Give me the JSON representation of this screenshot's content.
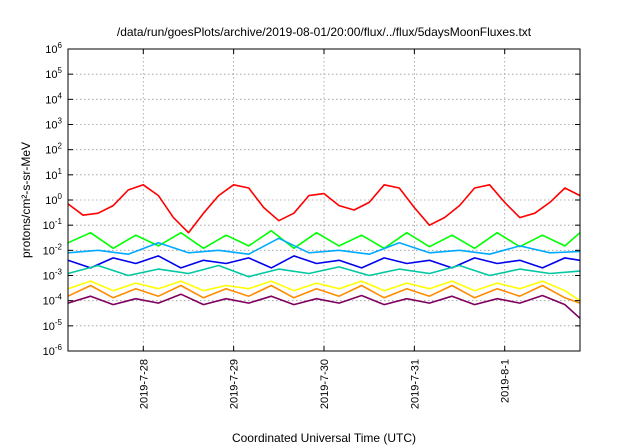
{
  "chart_data": {
    "type": "line",
    "title": "/data/run/goesPlots/archive/2019-08-01/20:00/flux/../flux/5daysMoonFluxes.txt",
    "xlabel": "Coordinated Universal Time (UTC)",
    "ylabel": "protons/cm²-s-sr-MeV",
    "yscale": "log",
    "ylim": [
      1e-06,
      1000000.0
    ],
    "xlim": [
      "2019-07-27 04:00",
      "2019-08-01 20:00"
    ],
    "grid": true,
    "y_ticks": [
      {
        "value": 1e-06,
        "base": "10",
        "exp": "-6"
      },
      {
        "value": 1e-05,
        "base": "10",
        "exp": "-5"
      },
      {
        "value": 0.0001,
        "base": "10",
        "exp": "-4"
      },
      {
        "value": 0.001,
        "base": "10",
        "exp": "-3"
      },
      {
        "value": 0.01,
        "base": "10",
        "exp": "-2"
      },
      {
        "value": 0.1,
        "base": "10",
        "exp": "-1"
      },
      {
        "value": 1.0,
        "base": "10",
        "exp": "0"
      },
      {
        "value": 10.0,
        "base": "10",
        "exp": "1"
      },
      {
        "value": 100.0,
        "base": "10",
        "exp": "2"
      },
      {
        "value": 1000.0,
        "base": "10",
        "exp": "3"
      },
      {
        "value": 10000.0,
        "base": "10",
        "exp": "4"
      },
      {
        "value": 100000.0,
        "base": "10",
        "exp": "5"
      },
      {
        "value": 1000000.0,
        "base": "10",
        "exp": "6"
      }
    ],
    "x_ticks": [
      {
        "value": "2019-07-28 00:00",
        "label": "2019-7-28"
      },
      {
        "value": "2019-07-29 00:00",
        "label": "2019-7-29"
      },
      {
        "value": "2019-07-30 00:00",
        "label": "2019-7-30"
      },
      {
        "value": "2019-07-31 00:00",
        "label": "2019-7-31"
      },
      {
        "value": "2019-08-01 00:00",
        "label": "2019-8-1"
      }
    ],
    "series": [
      {
        "color": "#ff0000",
        "x": [
          "2019-07-27 04:00",
          "2019-07-27 08:00",
          "2019-07-27 12:00",
          "2019-07-27 16:00",
          "2019-07-27 20:00",
          "2019-07-28 00:00",
          "2019-07-28 04:00",
          "2019-07-28 08:00",
          "2019-07-28 12:00",
          "2019-07-28 16:00",
          "2019-07-28 20:00",
          "2019-07-29 00:00",
          "2019-07-29 04:00",
          "2019-07-29 08:00",
          "2019-07-29 12:00",
          "2019-07-29 16:00",
          "2019-07-29 20:00",
          "2019-07-30 00:00",
          "2019-07-30 04:00",
          "2019-07-30 08:00",
          "2019-07-30 12:00",
          "2019-07-30 16:00",
          "2019-07-30 20:00",
          "2019-07-31 00:00",
          "2019-07-31 04:00",
          "2019-07-31 08:00",
          "2019-07-31 12:00",
          "2019-07-31 16:00",
          "2019-07-31 20:00",
          "2019-08-01 00:00",
          "2019-08-01 04:00",
          "2019-08-01 08:00",
          "2019-08-01 12:00",
          "2019-08-01 16:00",
          "2019-08-01 20:00"
        ],
        "values": [
          0.7,
          0.25,
          0.3,
          0.6,
          2.5,
          4,
          1.5,
          0.2,
          0.05,
          0.3,
          1.5,
          4,
          3,
          0.5,
          0.15,
          0.3,
          1.5,
          1.8,
          0.6,
          0.4,
          0.8,
          4,
          3,
          0.5,
          0.1,
          0.2,
          0.6,
          3,
          4,
          0.8,
          0.2,
          0.3,
          0.8,
          3,
          1.5
        ]
      },
      {
        "color": "#00ff00",
        "x": [
          "2019-07-27 04:00",
          "2019-07-27 10:00",
          "2019-07-27 16:00",
          "2019-07-27 22:00",
          "2019-07-28 04:00",
          "2019-07-28 10:00",
          "2019-07-28 16:00",
          "2019-07-28 22:00",
          "2019-07-29 04:00",
          "2019-07-29 10:00",
          "2019-07-29 16:00",
          "2019-07-29 22:00",
          "2019-07-30 04:00",
          "2019-07-30 10:00",
          "2019-07-30 16:00",
          "2019-07-30 22:00",
          "2019-07-31 04:00",
          "2019-07-31 10:00",
          "2019-07-31 16:00",
          "2019-07-31 22:00",
          "2019-08-01 04:00",
          "2019-08-01 10:00",
          "2019-08-01 16:00",
          "2019-08-01 20:00"
        ],
        "values": [
          0.02,
          0.05,
          0.012,
          0.04,
          0.015,
          0.05,
          0.012,
          0.04,
          0.015,
          0.06,
          0.012,
          0.05,
          0.015,
          0.04,
          0.012,
          0.05,
          0.014,
          0.04,
          0.012,
          0.05,
          0.014,
          0.04,
          0.015,
          0.05
        ]
      },
      {
        "color": "#00aaff",
        "x": [
          "2019-07-27 04:00",
          "2019-07-27 12:00",
          "2019-07-27 20:00",
          "2019-07-28 04:00",
          "2019-07-28 12:00",
          "2019-07-28 20:00",
          "2019-07-29 04:00",
          "2019-07-29 12:00",
          "2019-07-29 20:00",
          "2019-07-30 04:00",
          "2019-07-30 12:00",
          "2019-07-30 20:00",
          "2019-07-31 04:00",
          "2019-07-31 12:00",
          "2019-07-31 20:00",
          "2019-08-01 04:00",
          "2019-08-01 12:00",
          "2019-08-01 20:00"
        ],
        "values": [
          0.008,
          0.01,
          0.007,
          0.02,
          0.008,
          0.01,
          0.007,
          0.03,
          0.008,
          0.01,
          0.007,
          0.02,
          0.008,
          0.01,
          0.007,
          0.015,
          0.008,
          0.009
        ]
      },
      {
        "color": "#0000ee",
        "x": [
          "2019-07-27 04:00",
          "2019-07-27 10:00",
          "2019-07-27 16:00",
          "2019-07-27 22:00",
          "2019-07-28 04:00",
          "2019-07-28 10:00",
          "2019-07-28 16:00",
          "2019-07-28 22:00",
          "2019-07-29 04:00",
          "2019-07-29 10:00",
          "2019-07-29 16:00",
          "2019-07-29 22:00",
          "2019-07-30 04:00",
          "2019-07-30 10:00",
          "2019-07-30 16:00",
          "2019-07-30 22:00",
          "2019-07-31 04:00",
          "2019-07-31 10:00",
          "2019-07-31 16:00",
          "2019-07-31 22:00",
          "2019-08-01 04:00",
          "2019-08-01 10:00",
          "2019-08-01 16:00",
          "2019-08-01 20:00"
        ],
        "values": [
          0.004,
          0.002,
          0.005,
          0.003,
          0.006,
          0.002,
          0.004,
          0.003,
          0.005,
          0.002,
          0.006,
          0.003,
          0.004,
          0.002,
          0.005,
          0.003,
          0.004,
          0.002,
          0.005,
          0.003,
          0.004,
          0.002,
          0.005,
          0.004
        ]
      },
      {
        "color": "#00c8a0",
        "x": [
          "2019-07-27 04:00",
          "2019-07-27 12:00",
          "2019-07-27 20:00",
          "2019-07-28 04:00",
          "2019-07-28 12:00",
          "2019-07-28 20:00",
          "2019-07-29 04:00",
          "2019-07-29 12:00",
          "2019-07-29 20:00",
          "2019-07-30 04:00",
          "2019-07-30 12:00",
          "2019-07-30 20:00",
          "2019-07-31 04:00",
          "2019-07-31 12:00",
          "2019-07-31 20:00",
          "2019-08-01 04:00",
          "2019-08-01 12:00",
          "2019-08-01 20:00"
        ],
        "values": [
          0.0012,
          0.0025,
          0.001,
          0.0018,
          0.0012,
          0.0025,
          0.0009,
          0.0018,
          0.0012,
          0.0022,
          0.001,
          0.0018,
          0.0012,
          0.0025,
          0.001,
          0.0018,
          0.0012,
          0.0015
        ]
      },
      {
        "color": "#ffff00",
        "x": [
          "2019-07-27 04:00",
          "2019-07-27 10:00",
          "2019-07-27 16:00",
          "2019-07-27 22:00",
          "2019-07-28 04:00",
          "2019-07-28 10:00",
          "2019-07-28 16:00",
          "2019-07-28 22:00",
          "2019-07-29 04:00",
          "2019-07-29 10:00",
          "2019-07-29 16:00",
          "2019-07-29 22:00",
          "2019-07-30 04:00",
          "2019-07-30 10:00",
          "2019-07-30 16:00",
          "2019-07-30 22:00",
          "2019-07-31 04:00",
          "2019-07-31 10:00",
          "2019-07-31 16:00",
          "2019-07-31 22:00",
          "2019-08-01 04:00",
          "2019-08-01 10:00",
          "2019-08-01 16:00",
          "2019-08-01 20:00"
        ],
        "values": [
          0.0003,
          0.0006,
          0.00025,
          0.0005,
          0.0003,
          0.0006,
          0.00025,
          0.0004,
          0.0003,
          0.0006,
          0.00025,
          0.0005,
          0.0003,
          0.0006,
          0.00025,
          0.0005,
          0.0003,
          0.0006,
          0.00025,
          0.0005,
          0.0003,
          0.0006,
          0.00025,
          0.0001
        ]
      },
      {
        "color": "#ff8c00",
        "x": [
          "2019-07-27 04:00",
          "2019-07-27 10:00",
          "2019-07-27 16:00",
          "2019-07-27 22:00",
          "2019-07-28 04:00",
          "2019-07-28 10:00",
          "2019-07-28 16:00",
          "2019-07-28 22:00",
          "2019-07-29 04:00",
          "2019-07-29 10:00",
          "2019-07-29 16:00",
          "2019-07-29 22:00",
          "2019-07-30 04:00",
          "2019-07-30 10:00",
          "2019-07-30 16:00",
          "2019-07-30 22:00",
          "2019-07-31 04:00",
          "2019-07-31 10:00",
          "2019-07-31 16:00",
          "2019-07-31 22:00",
          "2019-08-01 04:00",
          "2019-08-01 10:00",
          "2019-08-01 16:00",
          "2019-08-01 20:00"
        ],
        "values": [
          0.00015,
          0.0004,
          0.00013,
          0.0003,
          0.00015,
          0.0004,
          0.00013,
          0.0003,
          0.00015,
          0.0004,
          0.00013,
          0.0003,
          0.00015,
          0.0004,
          0.00013,
          0.0003,
          0.00015,
          0.0004,
          0.00013,
          0.0003,
          0.00015,
          0.0004,
          0.00013,
          8e-05
        ]
      },
      {
        "color": "#800060",
        "x": [
          "2019-07-27 04:00",
          "2019-07-27 10:00",
          "2019-07-27 16:00",
          "2019-07-27 22:00",
          "2019-07-28 04:00",
          "2019-07-28 10:00",
          "2019-07-28 16:00",
          "2019-07-28 22:00",
          "2019-07-29 04:00",
          "2019-07-29 10:00",
          "2019-07-29 16:00",
          "2019-07-29 22:00",
          "2019-07-30 04:00",
          "2019-07-30 10:00",
          "2019-07-30 16:00",
          "2019-07-30 22:00",
          "2019-07-31 04:00",
          "2019-07-31 10:00",
          "2019-07-31 16:00",
          "2019-07-31 22:00",
          "2019-08-01 04:00",
          "2019-08-01 10:00",
          "2019-08-01 16:00",
          "2019-08-01 20:00"
        ],
        "values": [
          8e-05,
          0.00015,
          7e-05,
          0.00012,
          8e-05,
          0.00018,
          7e-05,
          0.00012,
          8e-05,
          0.00015,
          7e-05,
          0.00012,
          8e-05,
          0.00016,
          7e-05,
          0.00012,
          8e-05,
          0.00015,
          7e-05,
          0.00012,
          8e-05,
          0.00016,
          7e-05,
          2e-05
        ]
      }
    ]
  }
}
